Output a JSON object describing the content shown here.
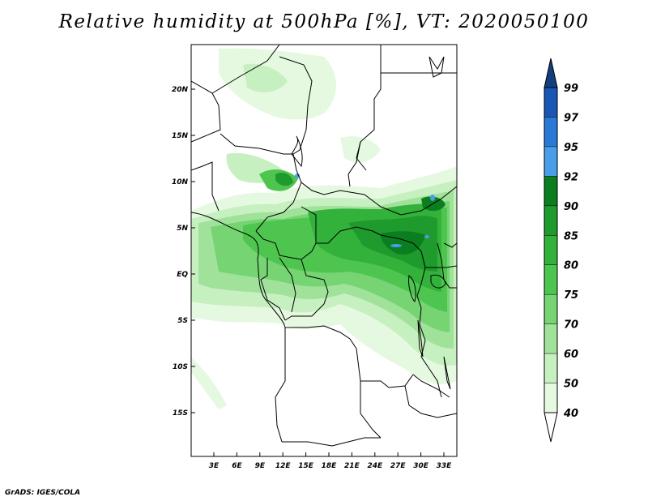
{
  "title": "Relative humidity at 500hPa [%], VT: 2020050100",
  "credit": "GrADS: IGES/COLA",
  "map": {
    "lon_labels": [
      "3E",
      "6E",
      "9E",
      "12E",
      "15E",
      "18E",
      "21E",
      "24E",
      "27E",
      "30E",
      "33E"
    ],
    "lat_labels": [
      "20N",
      "15N",
      "10N",
      "5N",
      "EQ",
      "5S",
      "10S",
      "15S"
    ]
  },
  "colorbar": {
    "levels": [
      "40",
      "50",
      "60",
      "70",
      "75",
      "80",
      "85",
      "90",
      "92",
      "95",
      "97",
      "99"
    ],
    "colors": [
      "#ffffff",
      "#e5f9e0",
      "#c7f0c0",
      "#a1e29b",
      "#76d472",
      "#4ec54f",
      "#33b23b",
      "#1f9a2d",
      "#0b7f1f",
      "#4a9de8",
      "#2a79d6",
      "#1957b4",
      "#12407f"
    ]
  }
}
